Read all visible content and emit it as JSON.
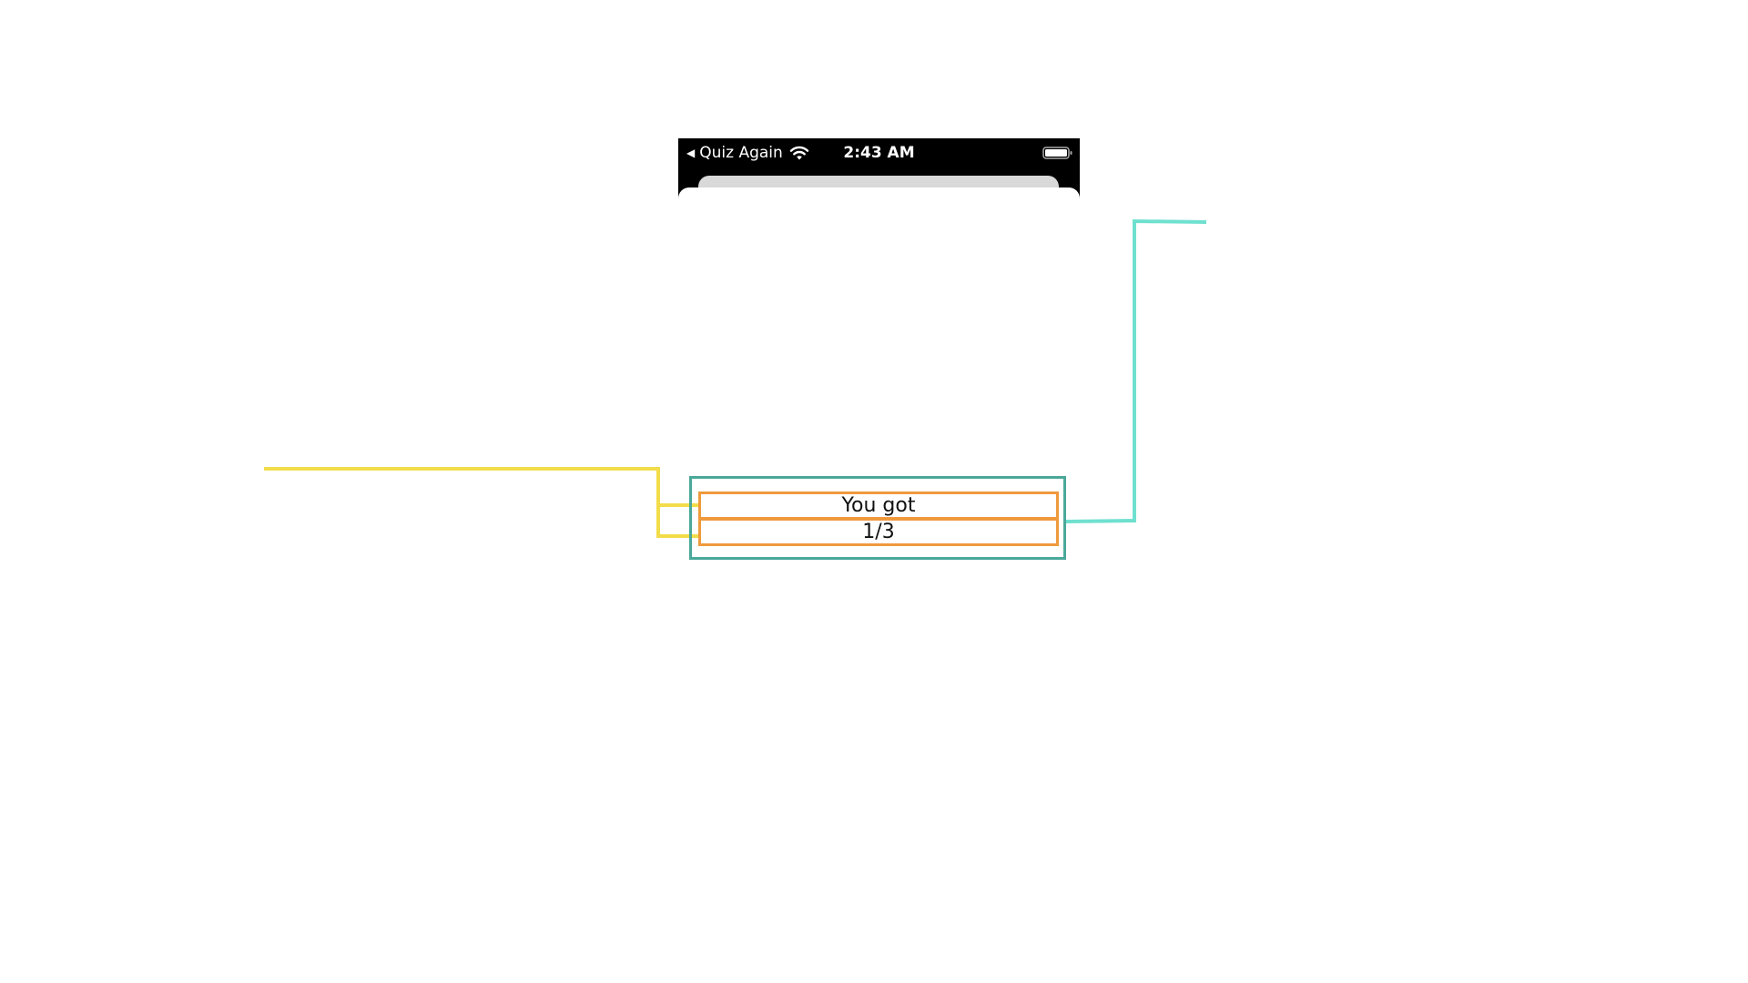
{
  "status_bar": {
    "back_app": "Quiz Again",
    "time": "2:43 AM"
  },
  "result": {
    "line1": "You got",
    "line2": "1/3"
  },
  "colors": {
    "container_outline": "#4aa89a",
    "text_outline": "#ef9a3c",
    "leader_yellow": "#f3dc4a",
    "leader_teal": "#6fe0cf"
  },
  "icons": {
    "back": "back-caret-icon",
    "wifi": "wifi-icon",
    "battery": "battery-icon"
  }
}
